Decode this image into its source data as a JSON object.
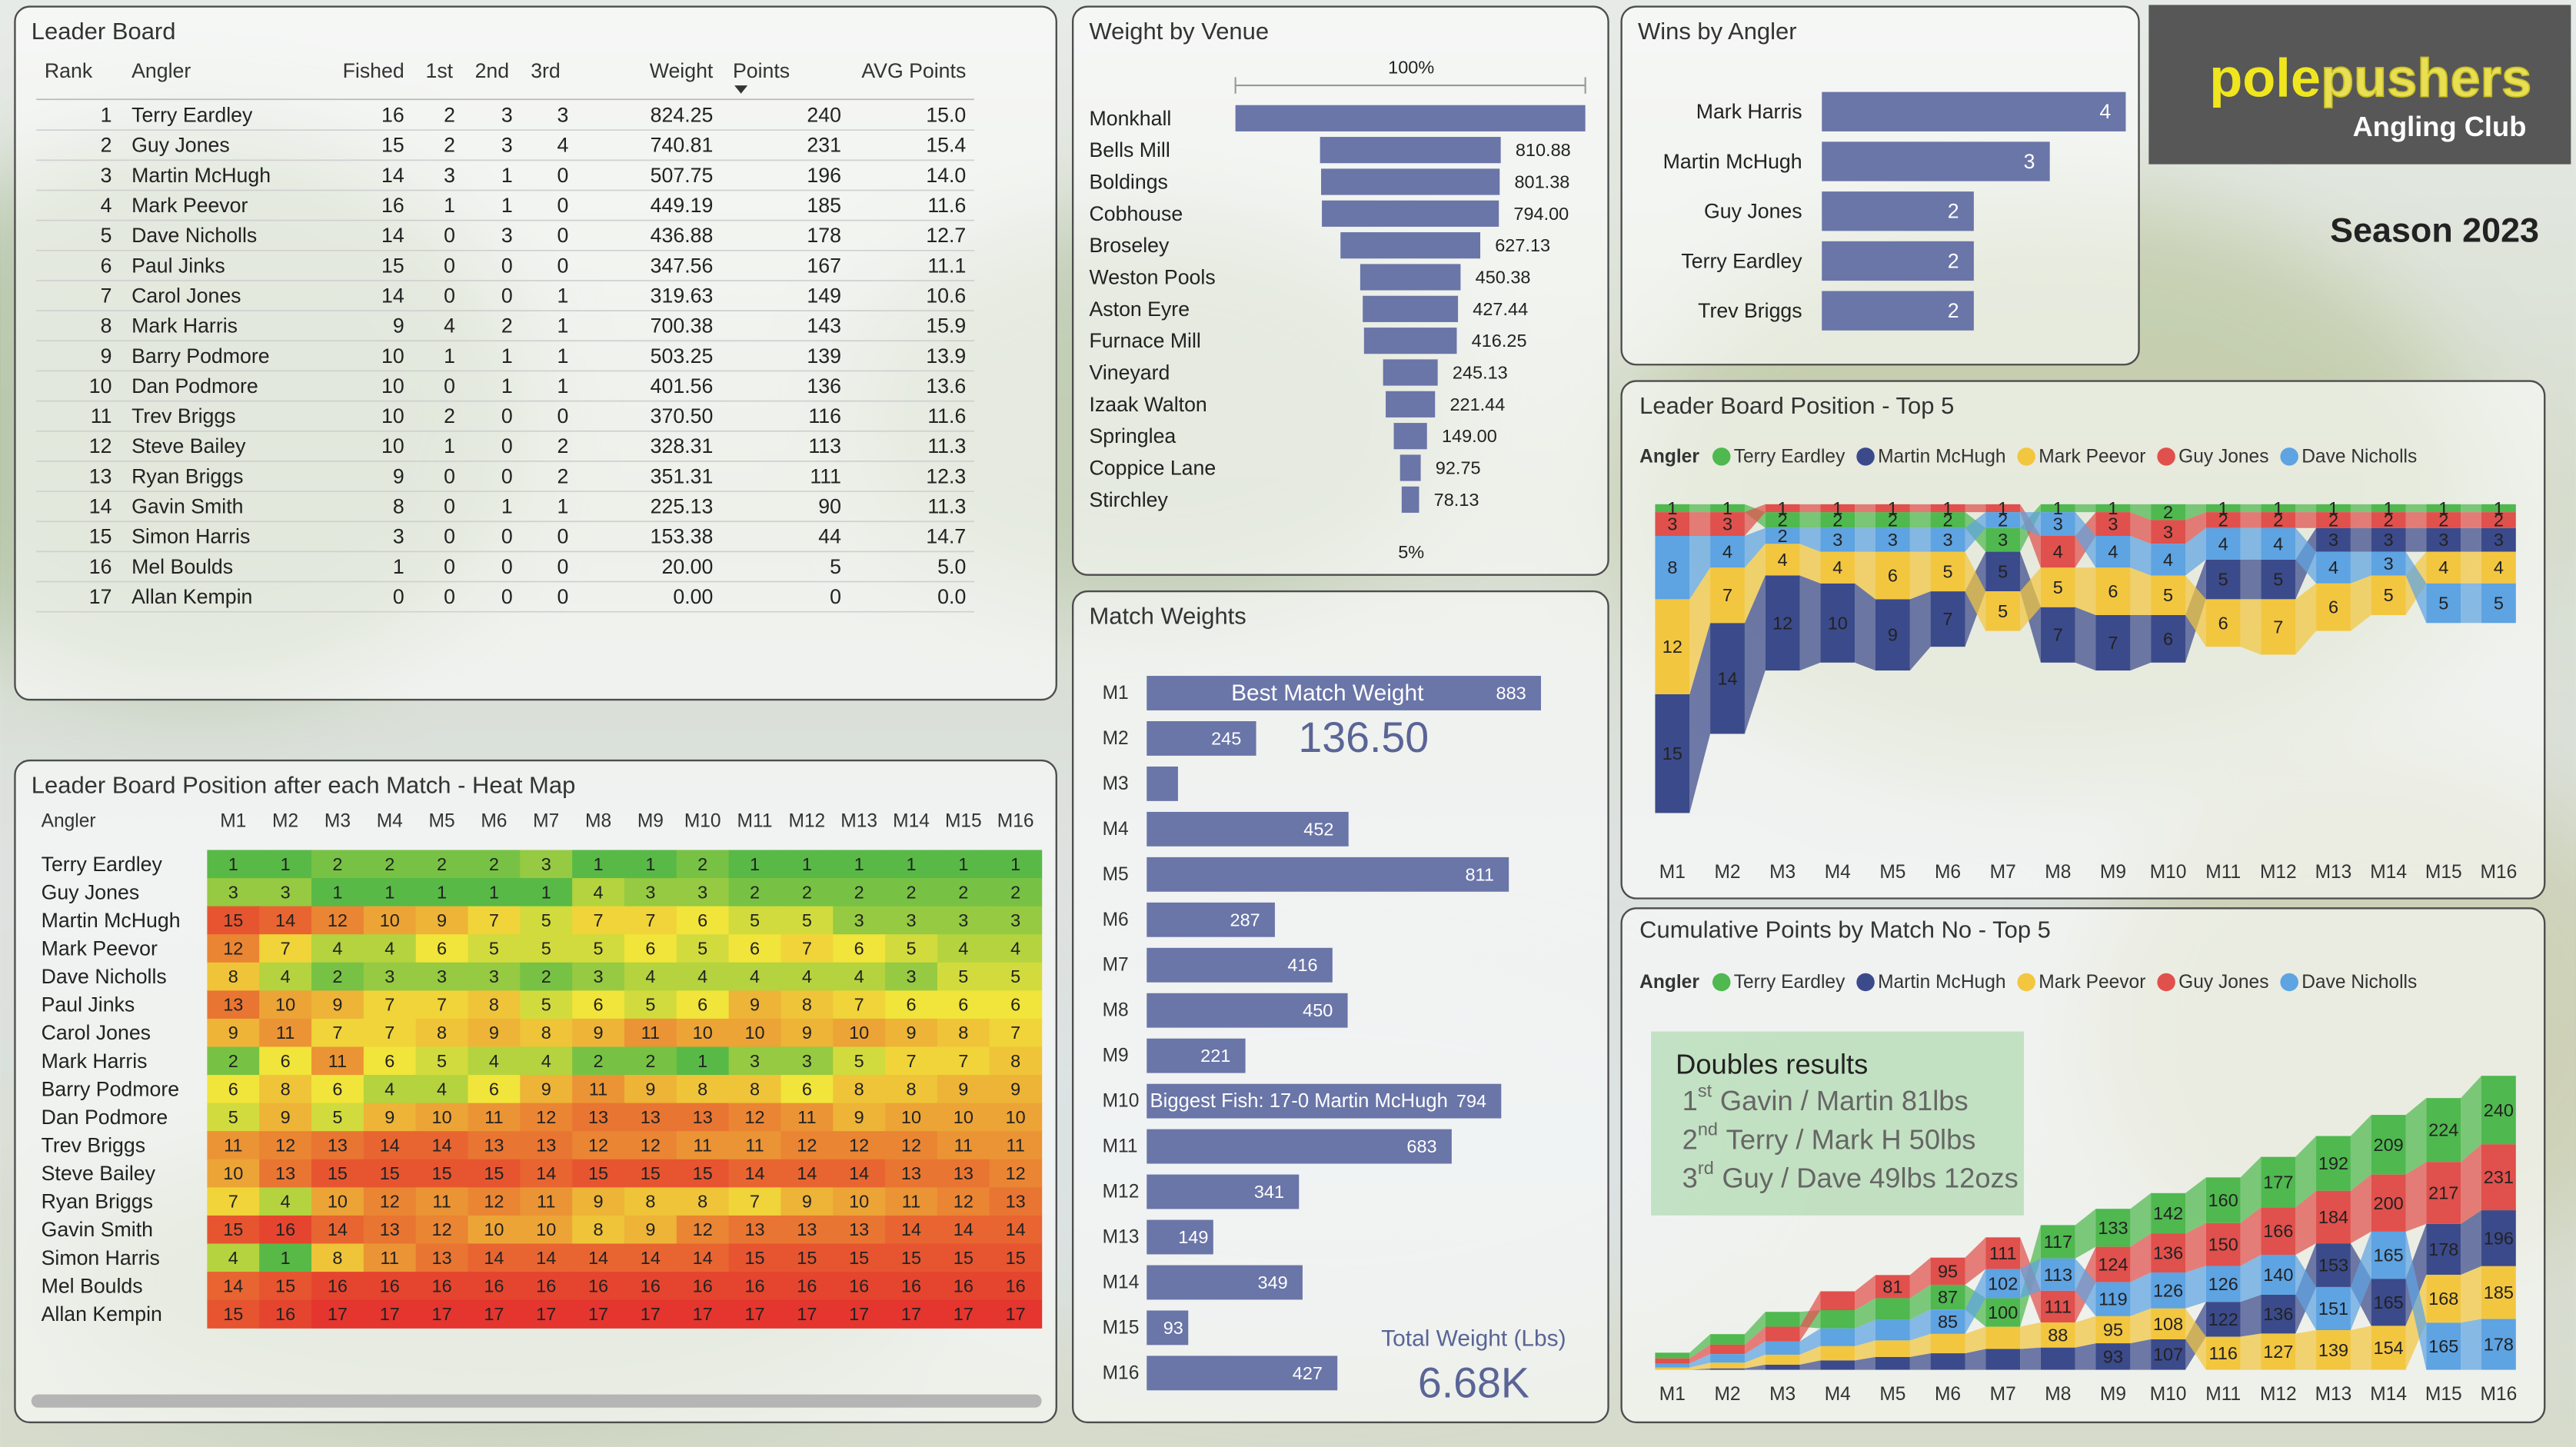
{
  "header": {
    "logo_pole": "pole",
    "logo_pushers": "pushers",
    "logo_subtitle": "Angling Club",
    "season": "Season 2023"
  },
  "leader_board": {
    "title": "Leader Board",
    "columns": [
      "Rank",
      "Angler",
      "Fished",
      "1st",
      "2nd",
      "3rd",
      "Weight",
      "Points",
      "AVG Points"
    ],
    "rows": [
      [
        "1",
        "Terry Eardley",
        "16",
        "2",
        "3",
        "3",
        "824.25",
        "240",
        "15.0"
      ],
      [
        "2",
        "Guy Jones",
        "15",
        "2",
        "3",
        "4",
        "740.81",
        "231",
        "15.4"
      ],
      [
        "3",
        "Martin McHugh",
        "14",
        "3",
        "1",
        "0",
        "507.75",
        "196",
        "14.0"
      ],
      [
        "4",
        "Mark Peevor",
        "16",
        "1",
        "1",
        "0",
        "449.19",
        "185",
        "11.6"
      ],
      [
        "5",
        "Dave Nicholls",
        "14",
        "0",
        "3",
        "0",
        "436.88",
        "178",
        "12.7"
      ],
      [
        "6",
        "Paul Jinks",
        "15",
        "0",
        "0",
        "0",
        "347.56",
        "167",
        "11.1"
      ],
      [
        "7",
        "Carol Jones",
        "14",
        "0",
        "0",
        "1",
        "319.63",
        "149",
        "10.6"
      ],
      [
        "8",
        "Mark Harris",
        "9",
        "4",
        "2",
        "1",
        "700.38",
        "143",
        "15.9"
      ],
      [
        "9",
        "Barry Podmore",
        "10",
        "1",
        "1",
        "1",
        "503.25",
        "139",
        "13.9"
      ],
      [
        "10",
        "Dan Podmore",
        "10",
        "0",
        "1",
        "1",
        "401.56",
        "136",
        "13.6"
      ],
      [
        "11",
        "Trev Briggs",
        "10",
        "2",
        "0",
        "0",
        "370.50",
        "116",
        "11.6"
      ],
      [
        "12",
        "Steve Bailey",
        "10",
        "1",
        "0",
        "2",
        "328.31",
        "113",
        "11.3"
      ],
      [
        "13",
        "Ryan Briggs",
        "9",
        "0",
        "0",
        "2",
        "351.31",
        "111",
        "12.3"
      ],
      [
        "14",
        "Gavin Smith",
        "8",
        "0",
        "1",
        "1",
        "225.13",
        "90",
        "11.3"
      ],
      [
        "15",
        "Simon Harris",
        "3",
        "0",
        "0",
        "0",
        "153.38",
        "44",
        "14.7"
      ],
      [
        "16",
        "Mel Boulds",
        "1",
        "0",
        "0",
        "0",
        "20.00",
        "5",
        "5.0"
      ],
      [
        "17",
        "Allan Kempin",
        "0",
        "0",
        "0",
        "0",
        "0.00",
        "0",
        "0.0"
      ]
    ]
  },
  "doubles": {
    "title": "Doubles results",
    "results": [
      {
        "rank": "1",
        "suffix": "st",
        "text": "Gavin / Martin 81lbs"
      },
      {
        "rank": "2",
        "suffix": "nd",
        "text": "Terry / Mark H 50lbs"
      },
      {
        "rank": "3",
        "suffix": "rd",
        "text": "Guy / Dave 49lbs 12ozs"
      }
    ]
  },
  "chart_data": [
    {
      "type": "funnel",
      "title": "Weight by Venue",
      "top_label": "100%",
      "bottom_label": "5%",
      "color": "#6a75a8",
      "categories": [
        "Monkhall",
        "Bells Mill",
        "Boldings",
        "Cobhouse",
        "Broseley",
        "Weston Pools",
        "Aston Eyre",
        "Furnace Mill",
        "Vineyard",
        "Izaak Walton",
        "Springlea",
        "Coppice Lane",
        "Stirchley"
      ],
      "values": [
        1570,
        810.88,
        801.38,
        794,
        627.13,
        450.38,
        427.44,
        416.25,
        245.13,
        221.44,
        149,
        92.75,
        78.13
      ],
      "value_labels": [
        null,
        "810.88",
        "801.38",
        "794.00",
        "627.13",
        "450.38",
        "427.44",
        "416.25",
        "245.13",
        "221.44",
        "149.00",
        "92.75",
        "78.13"
      ]
    },
    {
      "type": "hbar",
      "title": "Wins by Angler",
      "color": "#6a75a8",
      "categories": [
        "Mark Harris",
        "Martin McHugh",
        "Guy Jones",
        "Terry Eardley",
        "Trev Briggs"
      ],
      "values": [
        4,
        3,
        2,
        2,
        2
      ]
    },
    {
      "type": "ribbon",
      "title": "Leader Board Position - Top 5",
      "legend_title": "Angler",
      "y_reversed": true,
      "categories": [
        "M1",
        "M2",
        "M3",
        "M4",
        "M5",
        "M6",
        "M7",
        "M8",
        "M9",
        "M10",
        "M11",
        "M12",
        "M13",
        "M14",
        "M15",
        "M16"
      ],
      "series": [
        {
          "name": "Terry Eardley",
          "color": "#4fb84f",
          "values": [
            1,
            1,
            2,
            2,
            2,
            2,
            3,
            1,
            1,
            2,
            1,
            1,
            1,
            1,
            1,
            1
          ]
        },
        {
          "name": "Martin McHugh",
          "color": "#3b4a8a",
          "values": [
            15,
            14,
            12,
            10,
            9,
            7,
            5,
            7,
            7,
            6,
            5,
            5,
            3,
            3,
            3,
            3
          ]
        },
        {
          "name": "Mark Peevor",
          "color": "#f3c640",
          "values": [
            12,
            7,
            4,
            4,
            6,
            5,
            5,
            5,
            6,
            5,
            6,
            7,
            6,
            5,
            4,
            4
          ]
        },
        {
          "name": "Guy Jones",
          "color": "#e0504c",
          "values": [
            3,
            3,
            1,
            1,
            1,
            1,
            1,
            4,
            3,
            3,
            2,
            2,
            2,
            2,
            2,
            2
          ]
        },
        {
          "name": "Dave Nicholls",
          "color": "#5ea3e2",
          "values": [
            8,
            4,
            2,
            3,
            3,
            3,
            2,
            3,
            4,
            4,
            4,
            4,
            4,
            3,
            5,
            5
          ]
        }
      ]
    },
    {
      "type": "heatmap",
      "title": "Leader Board Position after each Match - Heat Map",
      "row_header": "Angler",
      "color_stops": [
        {
          "value": 1,
          "color": "#58b947"
        },
        {
          "value": 6,
          "color": "#f1e43a"
        },
        {
          "value": 17,
          "color": "#e4352e"
        }
      ],
      "categories": [
        "M1",
        "M2",
        "M3",
        "M4",
        "M5",
        "M6",
        "M7",
        "M8",
        "M9",
        "M10",
        "M11",
        "M12",
        "M13",
        "M14",
        "M15",
        "M16"
      ],
      "rows": [
        "Terry Eardley",
        "Guy Jones",
        "Martin McHugh",
        "Mark Peevor",
        "Dave Nicholls",
        "Paul Jinks",
        "Carol Jones",
        "Mark Harris",
        "Barry Podmore",
        "Dan Podmore",
        "Trev Briggs",
        "Steve Bailey",
        "Ryan Briggs",
        "Gavin Smith",
        "Simon Harris",
        "Mel Boulds",
        "Allan Kempin"
      ],
      "values": [
        [
          1,
          1,
          2,
          2,
          2,
          2,
          3,
          1,
          1,
          2,
          1,
          1,
          1,
          1,
          1,
          1
        ],
        [
          3,
          3,
          1,
          1,
          1,
          1,
          1,
          4,
          3,
          3,
          2,
          2,
          2,
          2,
          2,
          2
        ],
        [
          15,
          14,
          12,
          10,
          9,
          7,
          5,
          7,
          7,
          6,
          5,
          5,
          3,
          3,
          3,
          3
        ],
        [
          12,
          7,
          4,
          4,
          6,
          5,
          5,
          5,
          6,
          5,
          6,
          7,
          6,
          5,
          4,
          4
        ],
        [
          8,
          4,
          2,
          3,
          3,
          3,
          2,
          3,
          4,
          4,
          4,
          4,
          4,
          3,
          5,
          5
        ],
        [
          13,
          10,
          9,
          7,
          7,
          8,
          5,
          6,
          5,
          6,
          9,
          8,
          7,
          6,
          6,
          6
        ],
        [
          9,
          11,
          7,
          7,
          8,
          9,
          8,
          9,
          11,
          10,
          10,
          9,
          10,
          9,
          8,
          7
        ],
        [
          2,
          6,
          11,
          6,
          5,
          4,
          4,
          2,
          2,
          1,
          3,
          3,
          5,
          7,
          7,
          8
        ],
        [
          6,
          8,
          6,
          4,
          4,
          6,
          9,
          11,
          9,
          8,
          8,
          6,
          8,
          8,
          9,
          9
        ],
        [
          5,
          9,
          5,
          9,
          10,
          11,
          12,
          13,
          13,
          13,
          12,
          11,
          9,
          10,
          10,
          10
        ],
        [
          11,
          12,
          13,
          14,
          14,
          13,
          13,
          12,
          12,
          11,
          11,
          12,
          12,
          12,
          11,
          11
        ],
        [
          10,
          13,
          15,
          15,
          15,
          15,
          14,
          15,
          15,
          15,
          14,
          14,
          14,
          13,
          13,
          12
        ],
        [
          7,
          4,
          10,
          12,
          11,
          12,
          11,
          9,
          8,
          8,
          7,
          9,
          10,
          11,
          12,
          13
        ],
        [
          15,
          16,
          14,
          13,
          12,
          10,
          10,
          8,
          9,
          12,
          13,
          13,
          13,
          14,
          14,
          14
        ],
        [
          4,
          1,
          8,
          11,
          13,
          14,
          14,
          14,
          14,
          14,
          15,
          15,
          15,
          15,
          15,
          15
        ],
        [
          14,
          15,
          16,
          16,
          16,
          16,
          16,
          16,
          16,
          16,
          16,
          16,
          16,
          16,
          16,
          16
        ],
        [
          15,
          16,
          17,
          17,
          17,
          17,
          17,
          17,
          17,
          17,
          17,
          17,
          17,
          17,
          17,
          17
        ]
      ]
    },
    {
      "type": "hbar",
      "title": "Match Weights",
      "color": "#6a75a8",
      "categories": [
        "M1",
        "M2",
        "M3",
        "M4",
        "M5",
        "M6",
        "M7",
        "M8",
        "M9",
        "M10",
        "M11",
        "M12",
        "M13",
        "M14",
        "M15",
        "M16"
      ],
      "values": [
        883,
        245,
        70,
        452,
        811,
        287,
        416,
        450,
        221,
        794,
        683,
        341,
        149,
        349,
        93,
        427
      ],
      "value_labels": [
        "883",
        "245",
        null,
        "452",
        "811",
        "287",
        "416",
        "450",
        "221",
        "794",
        "683",
        "341",
        "149",
        "349",
        "93",
        "427"
      ],
      "annotations": [
        {
          "category": "M1",
          "text": "Best Match Weight"
        },
        {
          "category": "M10",
          "text": "Biggest Fish: 17-0 Martin McHugh"
        }
      ],
      "cards": [
        {
          "value": "136.50"
        },
        {
          "label": "Total Weight (Lbs)",
          "value": "6.68K"
        }
      ]
    },
    {
      "type": "ribbon",
      "title": "Cumulative Points by Match No - Top 5",
      "legend_title": "Angler",
      "y_reversed": false,
      "categories": [
        "M1",
        "M2",
        "M3",
        "M4",
        "M5",
        "M6",
        "M7",
        "M8",
        "M9",
        "M10",
        "M11",
        "M12",
        "M13",
        "M14",
        "M15",
        "M16"
      ],
      "series": [
        {
          "name": "Terry Eardley",
          "color": "#4fb84f",
          "values": [
            20,
            37,
            52,
            64,
            76,
            87,
            100,
            117,
            133,
            142,
            160,
            177,
            192,
            209,
            224,
            240
          ],
          "value_labels": [
            null,
            null,
            null,
            null,
            null,
            "87",
            "100",
            "117",
            "133",
            "142",
            "160",
            "177",
            "192",
            "209",
            "224",
            "240"
          ]
        },
        {
          "name": "Martin McHugh",
          "color": "#3b4a8a",
          "values": [
            0,
            5,
            18,
            33,
            45,
            58,
            73,
            78,
            93,
            107,
            122,
            136,
            153,
            165,
            178,
            196
          ],
          "value_labels": [
            null,
            null,
            null,
            null,
            null,
            null,
            null,
            null,
            "93",
            "107",
            "122",
            "136",
            "153",
            "165",
            "178",
            "196"
          ]
        },
        {
          "name": "Mark Peevor",
          "color": "#f3c640",
          "values": [
            8,
            20,
            35,
            50,
            58,
            68,
            78,
            88,
            95,
            108,
            116,
            127,
            139,
            154,
            168,
            185
          ],
          "value_labels": [
            null,
            null,
            null,
            null,
            null,
            null,
            null,
            "88",
            "95",
            "108",
            "116",
            "127",
            "139",
            "154",
            "168",
            "185"
          ]
        },
        {
          "name": "Guy Jones",
          "color": "#e0504c",
          "values": [
            18,
            33,
            51,
            66,
            81,
            95,
            111,
            111,
            124,
            136,
            150,
            166,
            184,
            200,
            217,
            231
          ],
          "value_labels": [
            null,
            null,
            null,
            null,
            "81",
            "95",
            "111",
            "111",
            "124",
            "136",
            "150",
            "166",
            "184",
            "200",
            "217",
            "231"
          ]
        },
        {
          "name": "Dave Nicholls",
          "color": "#5ea3e2",
          "values": [
            14,
            30,
            47,
            62,
            72,
            85,
            102,
            113,
            119,
            126,
            126,
            140,
            151,
            165,
            165,
            178
          ],
          "value_labels": [
            null,
            null,
            null,
            null,
            null,
            "85",
            "102",
            "113",
            "119",
            "126",
            "126",
            "140",
            "151",
            "165",
            "165",
            "178"
          ]
        }
      ]
    }
  ]
}
